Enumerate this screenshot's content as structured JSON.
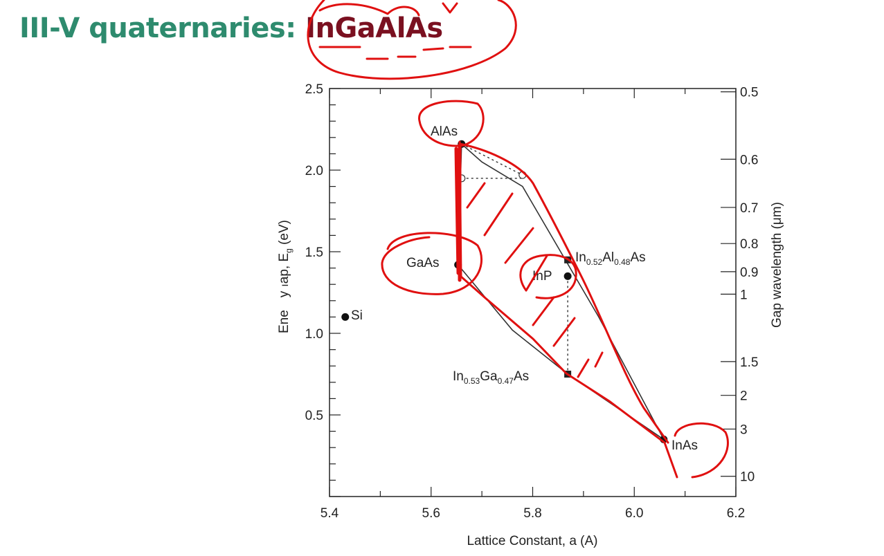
{
  "slide": {
    "title_prefix": "III-V quaternaries: ",
    "title_highlight": "InGaAlAs",
    "colors": {
      "prefix": "#2e8b6e",
      "highlight": "#7a1020",
      "annotation": "#e01010"
    }
  },
  "chart_data": {
    "type": "scatter",
    "xlabel": "Lattice Constant, a (A)",
    "ylabel": "Energy Gap, E_g (eV)",
    "ylabel_visible": {
      "a": "Ene",
      "b": "y",
      "c": "ap, E",
      "sub": "g",
      "d": " (eV)"
    },
    "y2label": "Gap wavelength (μm)",
    "xlim": [
      5.4,
      6.2
    ],
    "ylim": [
      0.0,
      2.5
    ],
    "x_ticks": [
      "5.4",
      "5.6",
      "5.8",
      "6.0",
      "6.2"
    ],
    "y_ticks": [
      "0.5",
      "1.0",
      "1.5",
      "2.0",
      "2.5"
    ],
    "y2_ticks": [
      {
        "label": "0.5",
        "value": 0.5
      },
      {
        "label": "0.6",
        "value": 0.6
      },
      {
        "label": "0.7",
        "value": 0.7
      },
      {
        "label": "0.8",
        "value": 0.8
      },
      {
        "label": "0.9",
        "value": 0.9
      },
      {
        "label": "1",
        "value": 1.0
      },
      {
        "label": "1.5",
        "value": 1.5
      },
      {
        "label": "2",
        "value": 2.0
      },
      {
        "label": "3",
        "value": 3.0
      },
      {
        "label": "10",
        "value": 10.0
      }
    ],
    "points": [
      {
        "name": "AlAs",
        "x": 5.66,
        "y": 2.16,
        "marker": "circle"
      },
      {
        "name": "GaAs",
        "x": 5.653,
        "y": 1.42,
        "marker": "circle"
      },
      {
        "name": "InAs",
        "x": 6.058,
        "y": 0.35,
        "marker": "circle"
      },
      {
        "name": "InP",
        "x": 5.869,
        "y": 1.35,
        "marker": "circle"
      },
      {
        "name": "Si",
        "x": 5.431,
        "y": 1.1,
        "marker": "circle"
      },
      {
        "name": "In0.52Al0.48As",
        "x": 5.869,
        "y": 1.45,
        "marker": "square"
      },
      {
        "name": "In0.53Ga0.47As",
        "x": 5.869,
        "y": 0.75,
        "marker": "square"
      }
    ],
    "point_labels": {
      "alas": "AlAs",
      "gaas": "GaAs",
      "inas": "InAs",
      "inp": "InP",
      "si": "Si",
      "inalas": {
        "a": "In",
        "s1": "0.52",
        "b": "Al",
        "s2": "0.48",
        "c": "As"
      },
      "ingaas": {
        "a": "In",
        "s1": "0.53",
        "b": "Ga",
        "s2": "0.47",
        "c": "As"
      }
    },
    "lines": [
      {
        "name": "AlAs-InAs",
        "points": [
          [
            5.66,
            2.16
          ],
          [
            5.7,
            2.05
          ],
          [
            5.78,
            1.9
          ],
          [
            5.93,
            1.1
          ],
          [
            6.058,
            0.35
          ]
        ]
      },
      {
        "name": "GaAs-InAs",
        "points": [
          [
            5.653,
            1.42
          ],
          [
            5.76,
            1.02
          ],
          [
            5.869,
            0.75
          ],
          [
            6.058,
            0.35
          ]
        ]
      },
      {
        "name": "AlAs-GaAs",
        "points": [
          [
            5.66,
            2.16
          ],
          [
            5.653,
            1.42
          ]
        ]
      }
    ],
    "dashed_lines": [
      {
        "points": [
          [
            5.66,
            2.16
          ],
          [
            5.78,
            1.97
          ]
        ]
      },
      {
        "points": [
          [
            5.66,
            1.95
          ],
          [
            5.78,
            1.95
          ]
        ]
      },
      {
        "points": [
          [
            5.869,
            1.35
          ],
          [
            5.869,
            0.75
          ]
        ]
      }
    ],
    "open_points": [
      {
        "x": 5.78,
        "y": 1.97
      },
      {
        "x": 5.66,
        "y": 1.95
      }
    ]
  }
}
